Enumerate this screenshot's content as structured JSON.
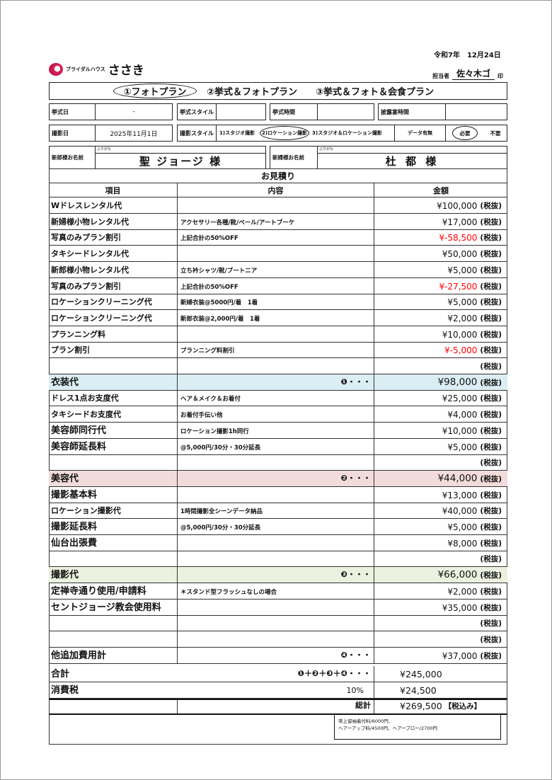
{
  "header": {
    "date": "令和7年　12月24日",
    "logo_text": "ブライダルハウス",
    "logo_name": "ささき",
    "staff_label": "担当者",
    "staff_name": "佐々木ゴ",
    "seal": "印"
  },
  "plans": {
    "items": [
      "①フォトプラン",
      "②挙式＆フォトプラン",
      "③挙式＆フォト＆会食プラン"
    ],
    "selected": 0
  },
  "info": {
    "ceremony_date_label": "挙式日",
    "ceremony_date": "-",
    "ceremony_style_label": "挙式スタイル",
    "ceremony_style": "",
    "ceremony_time_label": "挙式時間",
    "ceremony_time": "",
    "reception_time_label": "披露宴時間",
    "reception_time": "",
    "shoot_date_label": "撮影日",
    "shoot_date": "2025年11月1日",
    "shoot_style_label": "撮影スタイル",
    "shoot_styles": [
      "1)スタジオ撮影",
      "2)ロケーション撮影",
      "3)スタジオ＆ロケーション撮影"
    ],
    "shoot_style_selected": 1,
    "data_label": "データ有無",
    "data_options": [
      "必要",
      "不要"
    ],
    "data_selected": 0
  },
  "names": {
    "groom_label": "新郎様お名前",
    "groom_furigana_label": "ふりがな",
    "groom": "聖 ジョージ 様",
    "bride_label": "新婦様お名前",
    "bride_furigana_label": "ふりがな",
    "bride": "杜 都 様"
  },
  "estimate": {
    "title": "お見積り",
    "columns": [
      "項目",
      "内容",
      "金額"
    ],
    "colors": {
      "negative": "#ff0000",
      "costume": "#dbeef3",
      "beauty": "#f2dcdb",
      "photo": "#ebf1de"
    },
    "rows": [
      {
        "item": "Wドレスレンタル代",
        "content": "",
        "amount": "¥100,000",
        "tax": "(税抜)"
      },
      {
        "item": "新婦様小物レンタル代",
        "content": "アクセサリー各種/靴/ベール/アートブーケ",
        "amount": "¥17,000",
        "tax": "(税抜)"
      },
      {
        "item": "写真のみプラン割引",
        "content": "上記合計の50%OFF",
        "amount": "¥-58,500",
        "tax": "(税抜)",
        "neg": true
      },
      {
        "item": "タキシードレンタル代",
        "content": "",
        "amount": "¥50,000",
        "tax": "(税抜)"
      },
      {
        "item": "新郎様小物レンタル代",
        "content": "立ち衿シャツ/靴/ブートニア",
        "amount": "¥5,000",
        "tax": "(税抜)"
      },
      {
        "item": "写真のみプラン割引",
        "content": "上記合計の50%OFF",
        "amount": "¥-27,500",
        "tax": "(税抜)",
        "neg": true
      },
      {
        "item": "ロケーションクリーニング代",
        "content": "新婦衣装@5000円/着　1着",
        "amount": "¥5,000",
        "tax": "(税抜)"
      },
      {
        "item": "ロケーションクリーニング代",
        "content": "新郎衣装@2,000円/着　1着",
        "amount": "¥2,000",
        "tax": "(税抜)"
      },
      {
        "item": "プランニング料",
        "content": "",
        "amount": "¥10,000",
        "tax": "(税抜)"
      },
      {
        "item": "プラン割引",
        "content": "プランニング料割引",
        "amount": "¥-5,000",
        "tax": "(税抜)",
        "neg": true
      },
      {
        "item": "",
        "content": "",
        "amount": "",
        "tax": "(税抜)"
      },
      {
        "item": "衣装代",
        "content": "",
        "mark": "❶・・・",
        "amount": "¥98,000",
        "tax": "(税抜)",
        "bg": "costume",
        "big": true
      },
      {
        "item": "ドレス1点お支度代",
        "content": "ヘア＆メイク＆お着付",
        "amount": "¥25,000",
        "tax": "(税抜)"
      },
      {
        "item": "タキシードお支度代",
        "content": "お着付手伝い他",
        "amount": "¥4,000",
        "tax": "(税抜)"
      },
      {
        "item": "美容師同行代",
        "content": "ロケーション撮影1h同行",
        "amount": "¥10,000",
        "tax": "(税抜)",
        "big": true
      },
      {
        "item": "美容師延長料",
        "content": "@5,000円/30分・30分延長",
        "amount": "¥5,000",
        "tax": "(税抜)",
        "big": true
      },
      {
        "item": "",
        "content": "",
        "amount": "",
        "tax": "(税抜)"
      },
      {
        "item": "美容代",
        "content": "",
        "mark": "❷・・・",
        "amount": "¥44,000",
        "tax": "(税抜)",
        "bg": "beauty",
        "big": true
      },
      {
        "item": "撮影基本料",
        "content": "",
        "amount": "¥13,000",
        "tax": "(税抜)",
        "big": true
      },
      {
        "item": "ロケーション撮影代",
        "content": "1時間撮影全シーンデータ納品",
        "amount": "¥40,000",
        "tax": "(税抜)"
      },
      {
        "item": "撮影延長料",
        "content": "@5,000円/30分・30分延長",
        "amount": "¥5,000",
        "tax": "(税抜)",
        "big": true
      },
      {
        "item": "仙台出張費",
        "content": "",
        "amount": "¥8,000",
        "tax": "(税抜)",
        "big": true
      },
      {
        "item": "",
        "content": "",
        "amount": "",
        "tax": "(税抜)"
      },
      {
        "item": "撮影代",
        "content": "",
        "mark": "❸・・・",
        "amount": "¥66,000",
        "tax": "(税抜)",
        "bg": "photo",
        "big": true
      },
      {
        "item": "定禅寺通り使用/申請料",
        "content": "＊スタンド型フラッシュなしの場合",
        "amount": "¥2,000",
        "tax": "(税抜)",
        "big": true
      },
      {
        "item": "セントジョージ教会使用料",
        "content": "",
        "amount": "¥35,000",
        "tax": "(税抜)",
        "big": true
      },
      {
        "item": "",
        "content": "",
        "amount": "",
        "tax": "(税抜)"
      },
      {
        "item": "",
        "content": "",
        "amount": "",
        "tax": "(税抜)"
      },
      {
        "item": "他追加費用計",
        "content": "",
        "mark": "❹・・・",
        "amount": "¥37,000",
        "tax": "(税抜)",
        "big": true
      }
    ],
    "subtotal": {
      "label": "合計",
      "formula": "❶＋❷＋❸＋❹・・・",
      "amount": "¥245,000"
    },
    "tax": {
      "label": "消費税",
      "rate": "10%",
      "amount": "¥24,500"
    },
    "total": {
      "label": "総計",
      "amount": "¥269,500",
      "suffix": "【税込み】"
    }
  },
  "note": {
    "lines": [
      "帯上留袖着付料/6000円、",
      "ヘアーアップ料/4500円、ヘアーブロー/2700円"
    ]
  }
}
